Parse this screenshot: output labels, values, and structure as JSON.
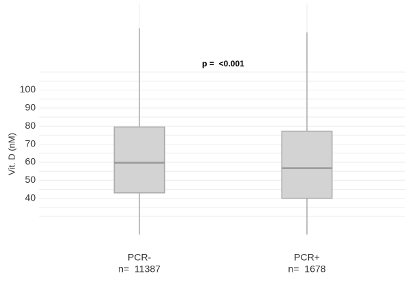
{
  "chart_data": {
    "type": "box",
    "y_label": "Vit. D (nM)",
    "annotation": "p =  <0.001",
    "categories": [
      "PCR-",
      "PCR+"
    ],
    "n_labels": [
      "n=  11387",
      "n=  1678"
    ],
    "boxes": [
      {
        "whislo": 20,
        "q1": 43,
        "med": 59.7,
        "q3": 79.5,
        "whishi": 134.2
      },
      {
        "whislo": 20,
        "q1": 40,
        "med": 56.7,
        "q3": 77.2,
        "whishi": 131.9
      }
    ],
    "box_color": "#d3d3d3",
    "line_color": "#a9a9a9",
    "ylim": [
      19,
      148
    ],
    "yticks": [
      40,
      50,
      60,
      70,
      80,
      90,
      100
    ],
    "minor_grid": [
      30,
      35,
      45,
      55,
      65,
      75,
      85,
      95,
      105,
      110
    ],
    "grid": true
  }
}
